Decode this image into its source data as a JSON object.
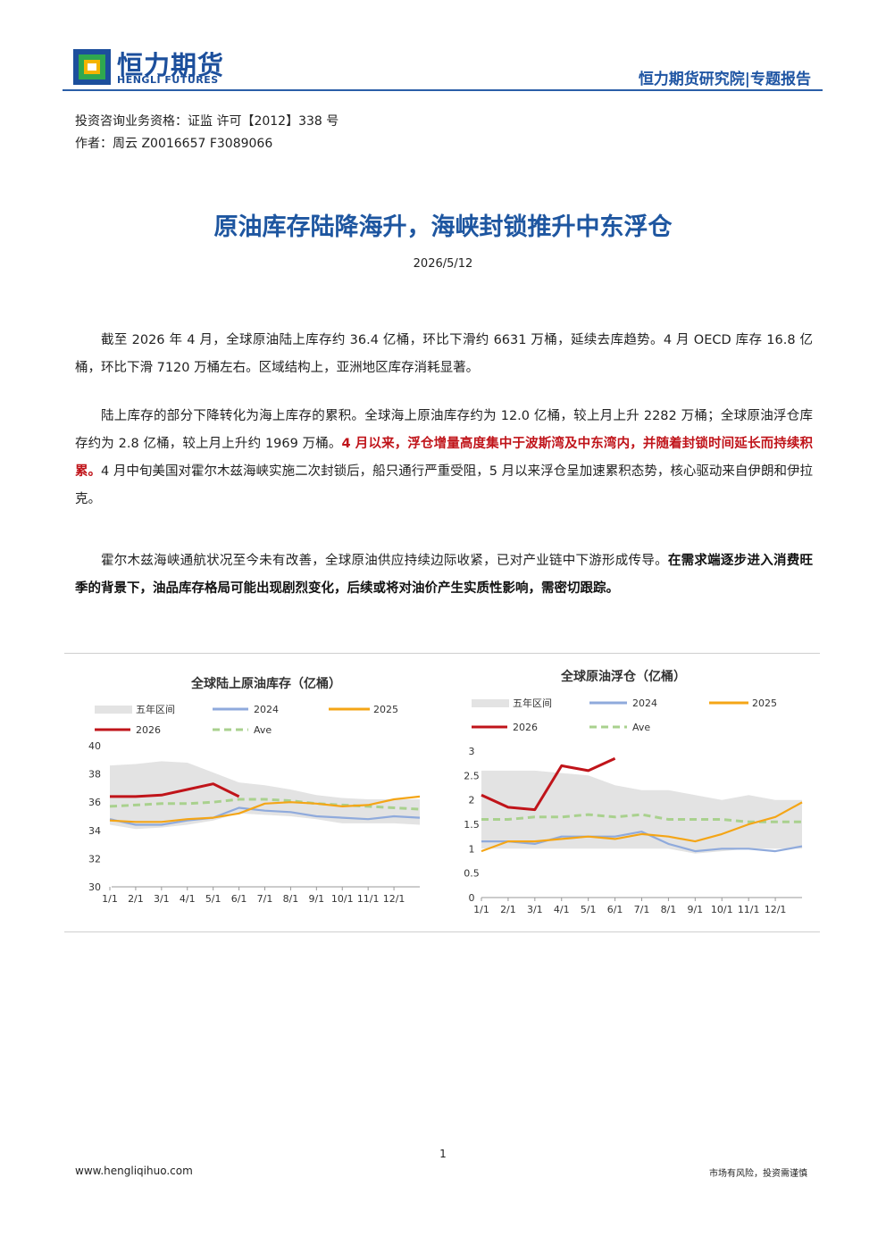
{
  "header": {
    "brand_cn": "恒力期货",
    "brand_en": "HENGLI FUTURES",
    "right_label": "恒力期货研究院|专题报告"
  },
  "meta": {
    "qualification": "投资咨询业务资格：证监 许可【2012】338 号",
    "author": "作者：周云   Z0016657 F3089066"
  },
  "article": {
    "title": "原油库存陆降海升，海峡封锁推升中东浮仓",
    "date": "2026/5/12",
    "p1": "截至 2026 年 4 月，全球原油陆上库存约 36.4 亿桶，环比下滑约 6631 万桶，延续去库趋势。4 月 OECD 库存 16.8 亿桶，环比下滑 7120 万桶左右。区域结构上，亚洲地区库存消耗显著。",
    "p2_a": "陆上库存的部分下降转化为海上库存的累积。全球海上原油库存约为 12.0 亿桶，较上月上升 2282 万桶；全球原油浮仓库存约为 2.8 亿桶，较上月上升约 1969 万桶。",
    "p2_red": "4 月以来，浮仓增量高度集中于波斯湾及中东湾内，并随着封锁时间延长而持续积累。",
    "p2_b": "4 月中旬美国对霍尔木兹海峡实施二次封锁后，船只通行严重受阻，5 月以来浮仓呈加速累积态势，核心驱动来自伊朗和伊拉克。",
    "p3_a": "霍尔木兹海峡通航状况至今未有改善，全球原油供应持续边际收紧，已对产业链中下游形成传导。",
    "p3_bold": "在需求端逐步进入消费旺季的背景下，油品库存格局可能出现剧烈变化，后续或将对油价产生实质性影响，需密切跟踪。"
  },
  "colors": {
    "brand_blue": "#1c4f9c",
    "highlight_red": "#c0141a",
    "band": "#e3e3e3",
    "s2024": "#8faadc",
    "s2025": "#f4a516",
    "s2026": "#c0141a",
    "ave": "#a9d18e"
  },
  "chart_data": [
    {
      "type": "line",
      "title": "全球陆上原油库存（亿桶）",
      "x_ticks": [
        "1/1",
        "2/1",
        "3/1",
        "4/1",
        "5/1",
        "6/1",
        "7/1",
        "8/1",
        "9/1",
        "10/1",
        "11/1",
        "12/1"
      ],
      "y_ticks": [
        "30",
        "32",
        "34",
        "36",
        "38",
        "40"
      ],
      "ylim": [
        30,
        40
      ],
      "legend": [
        "五年区间",
        "2024",
        "2025",
        "2026",
        "Ave"
      ],
      "band": {
        "name": "五年区间",
        "min": [
          34.4,
          34.1,
          34.2,
          34.4,
          34.7,
          35.2,
          35.1,
          35.0,
          34.8,
          34.5,
          34.5,
          34.5,
          34.4
        ],
        "max": [
          38.6,
          38.7,
          38.9,
          38.8,
          38.1,
          37.4,
          37.2,
          36.9,
          36.5,
          36.3,
          36.2,
          36.2,
          36.2
        ]
      },
      "series": [
        {
          "name": "2024",
          "values": [
            34.8,
            34.4,
            34.4,
            34.7,
            34.9,
            35.6,
            35.4,
            35.3,
            35.0,
            34.9,
            34.8,
            35.0,
            34.9
          ]
        },
        {
          "name": "2025",
          "values": [
            34.7,
            34.6,
            34.6,
            34.8,
            34.9,
            35.2,
            35.9,
            36.0,
            35.9,
            35.7,
            35.8,
            36.2,
            36.4
          ]
        },
        {
          "name": "2026",
          "values": [
            36.4,
            36.4,
            36.5,
            36.9,
            37.3,
            36.4
          ]
        },
        {
          "name": "Ave",
          "values": [
            35.7,
            35.8,
            35.9,
            35.9,
            36.0,
            36.2,
            36.2,
            36.1,
            35.9,
            35.8,
            35.7,
            35.6,
            35.5
          ]
        }
      ]
    },
    {
      "type": "line",
      "title": "全球原油浮仓（亿桶）",
      "x_ticks": [
        "1/1",
        "2/1",
        "3/1",
        "4/1",
        "5/1",
        "6/1",
        "7/1",
        "8/1",
        "9/1",
        "10/1",
        "11/1",
        "12/1"
      ],
      "y_ticks": [
        "0",
        "0.5",
        "1",
        "1.5",
        "2",
        "2.5",
        "3"
      ],
      "ylim": [
        0,
        3
      ],
      "legend": [
        "五年区间",
        "2024",
        "2025",
        "2026",
        "Ave"
      ],
      "band": {
        "name": "五年区间",
        "min": [
          1.0,
          1.0,
          1.0,
          1.0,
          1.0,
          1.0,
          1.0,
          1.0,
          0.9,
          0.95,
          1.0,
          1.0,
          1.0
        ],
        "max": [
          2.6,
          2.6,
          2.6,
          2.55,
          2.5,
          2.3,
          2.2,
          2.2,
          2.1,
          2.0,
          2.1,
          2.0,
          2.0
        ]
      },
      "series": [
        {
          "name": "2024",
          "values": [
            1.15,
            1.15,
            1.1,
            1.25,
            1.25,
            1.25,
            1.35,
            1.1,
            0.95,
            1.0,
            1.0,
            0.95,
            1.05
          ]
        },
        {
          "name": "2025",
          "values": [
            0.95,
            1.15,
            1.15,
            1.2,
            1.25,
            1.2,
            1.3,
            1.25,
            1.15,
            1.3,
            1.5,
            1.65,
            1.95
          ]
        },
        {
          "name": "2026",
          "values": [
            2.1,
            1.85,
            1.8,
            2.7,
            2.6,
            2.85
          ]
        },
        {
          "name": "Ave",
          "values": [
            1.6,
            1.6,
            1.65,
            1.65,
            1.7,
            1.65,
            1.7,
            1.6,
            1.6,
            1.6,
            1.55,
            1.55,
            1.55
          ]
        }
      ]
    }
  ],
  "footer": {
    "page": "1",
    "url": "www.hengliqihuo.com",
    "risk": "市场有风险，投资需谨慎"
  }
}
